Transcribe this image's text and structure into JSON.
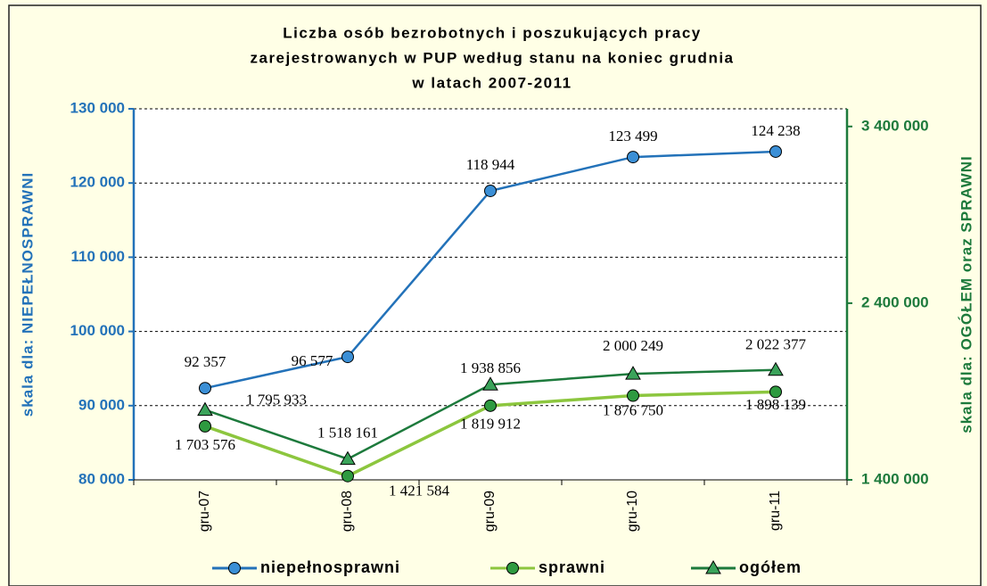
{
  "chart_data": {
    "type": "line",
    "title": [
      "Liczba osób bezrobotnych i poszukujących pracy",
      "zarejestrowanych w PUP według stanu na koniec grudnia",
      "w latach 2007-2011"
    ],
    "ylabel": "skala dla: NIEPEŁNOSPRAWNI",
    "y2label": "skala dla: OGÓŁEM oraz SPRAWNI",
    "categories": [
      "gru-07",
      "gru-08",
      "gru-09",
      "gru-10",
      "gru-11"
    ],
    "ylim": [
      80000,
      130000
    ],
    "yticks": [
      {
        "value": 80000,
        "label": "80 000"
      },
      {
        "value": 90000,
        "label": "90 000"
      },
      {
        "value": 100000,
        "label": "100 000"
      },
      {
        "value": 110000,
        "label": "110 000"
      },
      {
        "value": 120000,
        "label": "120 000"
      },
      {
        "value": 130000,
        "label": "130 000"
      }
    ],
    "y2lim": [
      1400000,
      3500000
    ],
    "y2ticks": [
      {
        "value": 1400000,
        "label": "1 400 000"
      },
      {
        "value": 2400000,
        "label": "2 400 000"
      },
      {
        "value": 3400000,
        "label": "3 400 000"
      }
    ],
    "grid": true,
    "legend": "bottom",
    "series": [
      {
        "name": "niepełnosprawni",
        "color": "#2372b9",
        "marker": "circle",
        "values": [
          92357,
          96577,
          118944,
          123499,
          124238
        ],
        "value_labels": [
          "92 357",
          "96 577",
          "118 944",
          "123 499",
          "124 238"
        ]
      },
      {
        "name": "sprawni",
        "color": "#8cc63e",
        "marker": "circle",
        "axis": "y2",
        "values": [
          1703576,
          1421584,
          1819912,
          1876750,
          1898139
        ],
        "value_labels": [
          "1 703 576",
          "1 421 584",
          "1 819 912",
          "1 876 750",
          "1 898 139"
        ]
      },
      {
        "name": "ogółem",
        "color": "#1d7a3c",
        "marker": "triangle",
        "axis": "y2",
        "values": [
          1795933,
          1518161,
          1938856,
          2000249,
          2022377
        ],
        "value_labels": [
          "1 795 933",
          "1 518 161",
          "1 938 856",
          "2 000 249",
          "2 022 377"
        ]
      }
    ]
  }
}
